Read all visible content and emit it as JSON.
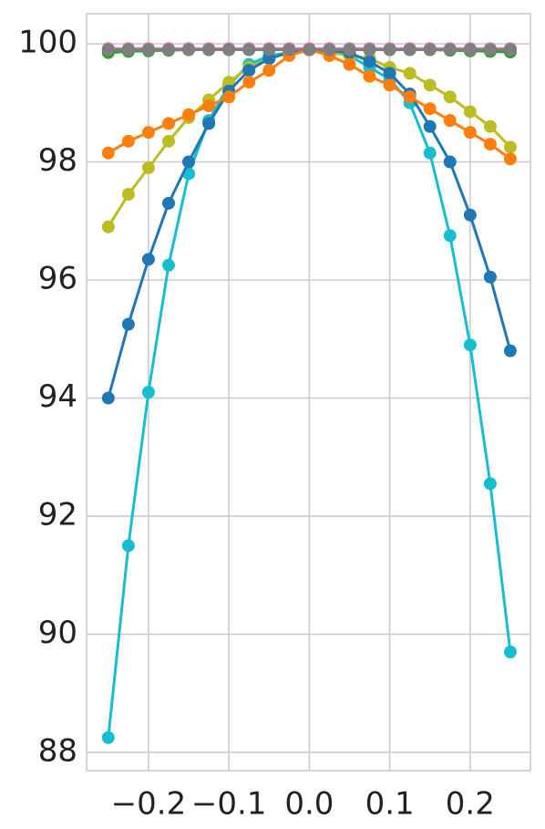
{
  "chart_data": {
    "type": "line",
    "x": [
      -0.25,
      -0.225,
      -0.2,
      -0.175,
      -0.15,
      -0.125,
      -0.1,
      -0.075,
      -0.05,
      -0.025,
      0,
      0.025,
      0.05,
      0.075,
      0.1,
      0.125,
      0.15,
      0.175,
      0.2,
      0.225,
      0.25
    ],
    "series": [
      {
        "color": "#2ca02c",
        "values": [
          99.85,
          99.87,
          99.88,
          99.89,
          99.9,
          99.9,
          99.9,
          99.9,
          99.9,
          99.9,
          99.9,
          99.9,
          99.9,
          99.9,
          99.9,
          99.9,
          99.9,
          99.89,
          99.88,
          99.87,
          99.86
        ]
      },
      {
        "color": "#e377c2",
        "values": [
          99.92,
          99.92,
          99.92,
          99.92,
          99.92,
          99.92,
          99.92,
          99.92,
          99.92,
          99.92,
          99.92,
          99.92,
          99.92,
          99.92,
          99.92,
          99.92,
          99.92,
          99.92,
          99.92,
          99.92,
          99.92
        ]
      },
      {
        "color": "#17becf",
        "values": [
          88.25,
          91.5,
          94.1,
          96.25,
          97.8,
          98.7,
          99.3,
          99.65,
          99.8,
          99.85,
          99.9,
          99.88,
          99.8,
          99.6,
          99.4,
          99.0,
          98.15,
          96.75,
          94.9,
          92.55,
          89.7
        ]
      },
      {
        "color": "#bcbd22",
        "values": [
          96.9,
          97.45,
          97.9,
          98.35,
          98.75,
          99.05,
          99.35,
          99.6,
          99.75,
          99.85,
          99.9,
          99.85,
          99.8,
          99.75,
          99.6,
          99.5,
          99.3,
          99.1,
          98.85,
          98.6,
          98.25
        ]
      },
      {
        "color": "#1f77b4",
        "values": [
          94.0,
          95.25,
          96.35,
          97.3,
          98.0,
          98.65,
          99.2,
          99.55,
          99.75,
          99.85,
          99.9,
          99.88,
          99.85,
          99.7,
          99.5,
          99.15,
          98.6,
          98.0,
          97.1,
          96.05,
          94.8
        ]
      },
      {
        "color": "#ff7f0e",
        "values": [
          98.15,
          98.35,
          98.5,
          98.65,
          98.8,
          98.95,
          99.1,
          99.35,
          99.55,
          99.8,
          99.9,
          99.8,
          99.65,
          99.45,
          99.3,
          99.1,
          98.9,
          98.7,
          98.5,
          98.3,
          98.05
        ]
      },
      {
        "color": "#7f7f7f",
        "values": [
          99.9,
          99.9,
          99.9,
          99.9,
          99.9,
          99.9,
          99.9,
          99.9,
          99.9,
          99.9,
          99.9,
          99.9,
          99.9,
          99.9,
          99.9,
          99.9,
          99.9,
          99.9,
          99.9,
          99.9,
          99.9
        ]
      }
    ],
    "xlim": [
      -0.277,
      0.275
    ],
    "ylim": [
      87.69,
      100.51
    ],
    "xticks": [
      {
        "value": -0.2,
        "label": "−0.2"
      },
      {
        "value": -0.1,
        "label": "−0.1"
      },
      {
        "value": 0,
        "label": "0.0"
      },
      0.1,
      0.2
    ],
    "yticks": [
      88,
      90,
      92,
      94,
      96,
      98,
      100
    ],
    "grid": true
  }
}
